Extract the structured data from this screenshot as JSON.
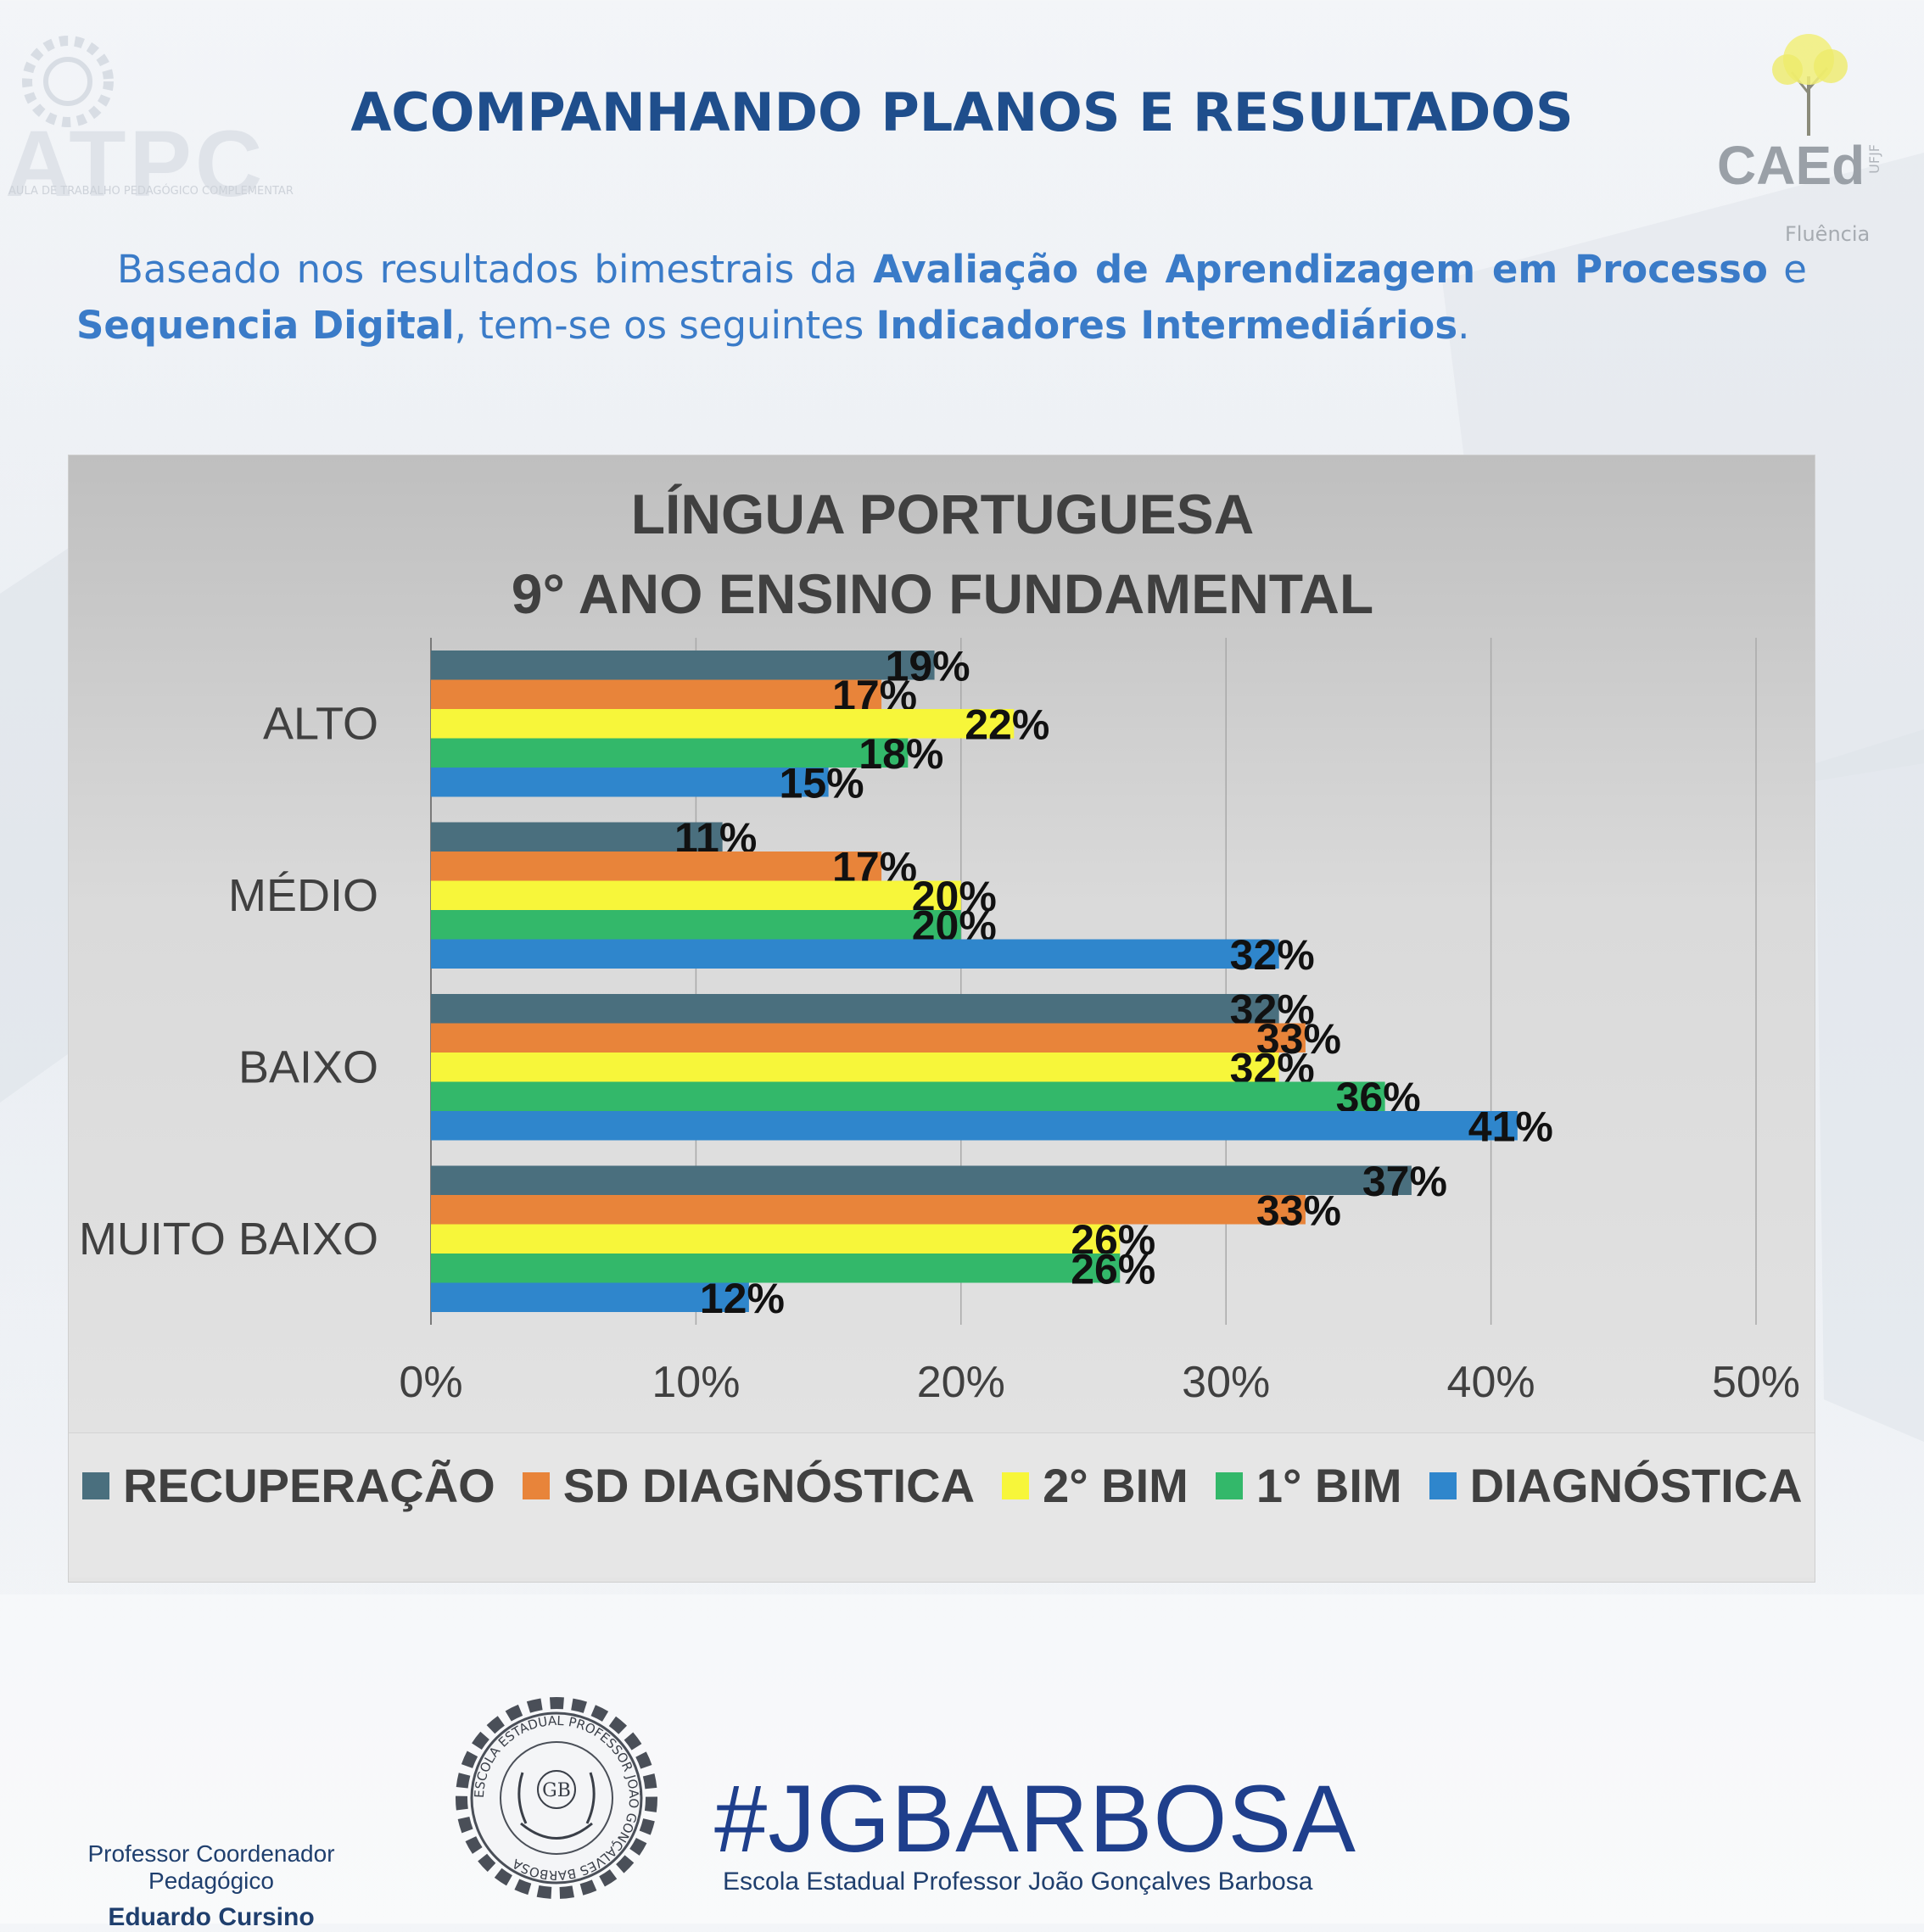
{
  "header": {
    "title": "ACOMPANHANDO PLANOS E RESULTADOS",
    "logo_left": {
      "brand": "ATPC",
      "tagline": "AULA DE TRABALHO PEDAGÓGICO COMPLEMENTAR"
    },
    "logo_right": {
      "brand": "CAEd",
      "sub": "UFJF",
      "caption": "Fluência"
    }
  },
  "intro": {
    "p1": "Baseado nos resultados bimestrais da ",
    "b1": "Avaliação de Aprendizagem em Processo",
    "p2": " e ",
    "b2": "Sequencia Digital",
    "p3": ", tem-se os seguintes ",
    "b3": "Indicadores Intermediários",
    "p4": "."
  },
  "chart_data": {
    "type": "bar",
    "orientation": "horizontal",
    "title_line1": "LÍNGUA PORTUGUESA",
    "title_line2": "9° ANO ENSINO FUNDAMENTAL",
    "categories": [
      "ALTO",
      "MÉDIO",
      "BAIXO",
      "MUITO BAIXO"
    ],
    "series": [
      {
        "name": "RECUPERAÇÃO",
        "color": "#4a6f7e",
        "values": [
          19,
          11,
          32,
          37
        ]
      },
      {
        "name": "SD DIAGNÓSTICA",
        "color": "#e8843a",
        "values": [
          17,
          17,
          33,
          33
        ]
      },
      {
        "name": "2° BIM",
        "color": "#f7f63a",
        "values": [
          22,
          20,
          32,
          26
        ]
      },
      {
        "name": "1° BIM",
        "color": "#33b86a",
        "values": [
          18,
          20,
          36,
          26
        ]
      },
      {
        "name": "DIAGNÓSTICA",
        "color": "#2f86cc",
        "values": [
          15,
          32,
          41,
          12
        ]
      }
    ],
    "xlim": [
      0,
      50
    ],
    "xticks": [
      "0%",
      "10%",
      "20%",
      "30%",
      "40%",
      "50%"
    ],
    "grid": true,
    "legend_position": "bottom",
    "value_suffix": "%"
  },
  "footer": {
    "role": "Professor Coordenador Pedagógico",
    "person": "Eduardo Cursino",
    "hashtag": "#JGBARBOSA",
    "school": "Escola Estadual Professor João Gonçalves Barbosa",
    "seal_text": "ESCOLA ESTADUAL PROFESSOR JOÃO GONÇALVES BARBOSA",
    "seal_initials": "GB"
  }
}
